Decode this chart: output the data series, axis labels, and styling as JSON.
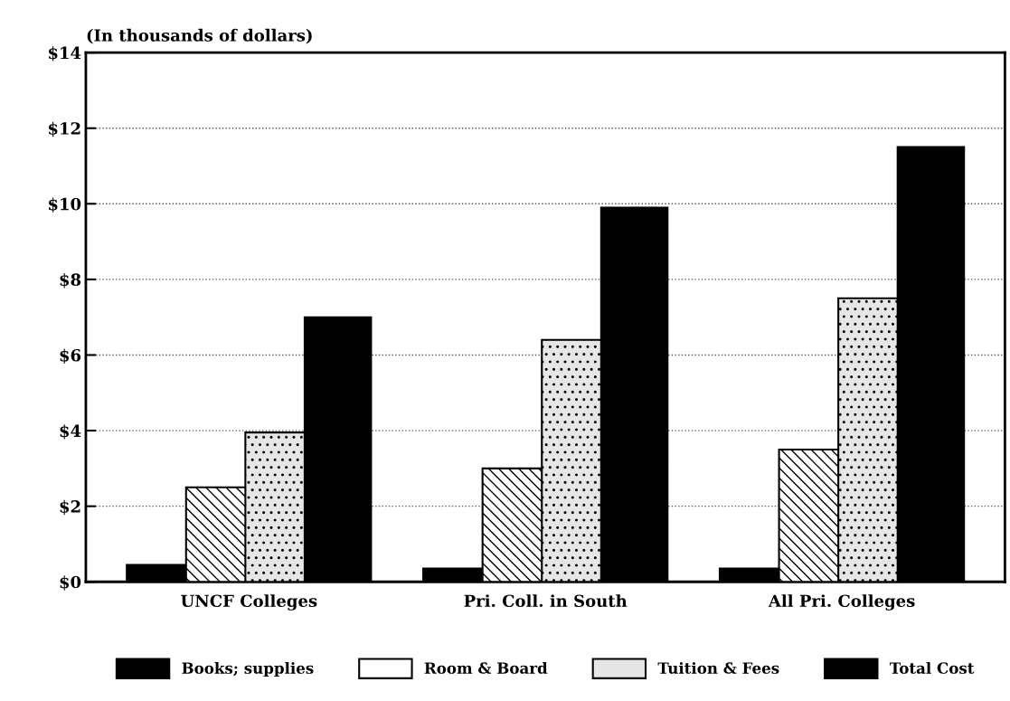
{
  "chart_data": {
    "type": "bar",
    "ylabel": "(In thousands of dollars)",
    "categories": [
      "UNCF Colleges",
      "Pri. Coll. in South",
      "All Pri. Colleges"
    ],
    "series": [
      {
        "name": "Books; supplies",
        "color": "#000000",
        "values": [
          0.45,
          0.35,
          0.35
        ]
      },
      {
        "name": "Room & Board",
        "color": "#ffffff",
        "values": [
          2.5,
          3.0,
          3.5
        ]
      },
      {
        "name": "Tuition & Fees",
        "color": "#e6e6e6",
        "values": [
          3.95,
          6.4,
          7.5
        ]
      },
      {
        "name": "Total Cost",
        "color": "#000000",
        "values": [
          7.0,
          9.9,
          11.5
        ]
      }
    ],
    "ylim": [
      0,
      14
    ],
    "yticks": [
      {
        "value": 0,
        "label": "$0"
      },
      {
        "value": 2,
        "label": "$2"
      },
      {
        "value": 4,
        "label": "$4"
      },
      {
        "value": 6,
        "label": "$6"
      },
      {
        "value": 8,
        "label": "$8"
      },
      {
        "value": 10,
        "label": "$10"
      },
      {
        "value": 12,
        "label": "$12"
      },
      {
        "value": 14,
        "label": "$14"
      }
    ],
    "grid": "y",
    "legend": "bottom"
  }
}
